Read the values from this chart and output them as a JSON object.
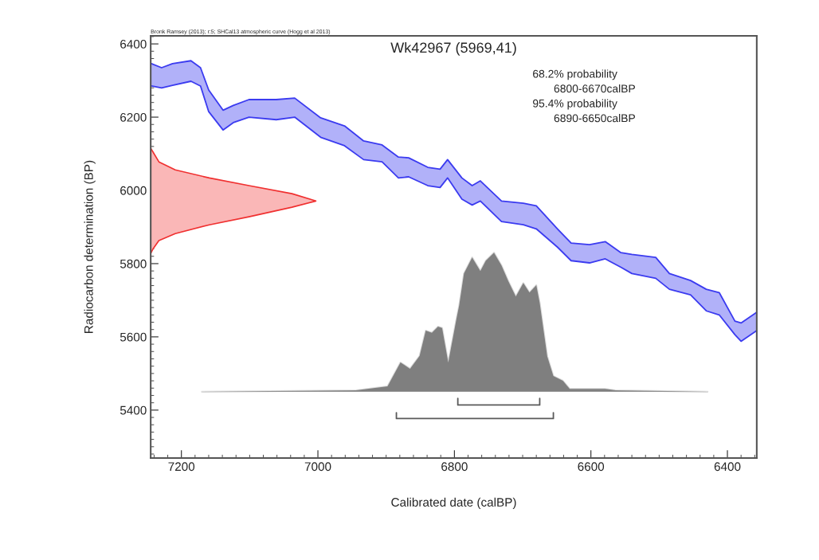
{
  "chart_data": {
    "type": "line",
    "title": "Wk42967 (5969,41)",
    "xlabel": "Calibrated date (calBP)",
    "ylabel": "Radiocarbon determination (BP)",
    "annotations": [
      "Bronk Ramsey (2013); r:5; SHCal13 atmospheric curve (Hogg et al 2013)",
      "68.2% probability",
      "6800-6670calBP",
      "95.4% probability",
      "6890-6650calBP"
    ],
    "xlim": [
      7245,
      6357
    ],
    "xticks": [
      7200,
      7000,
      6800,
      6600,
      6400
    ],
    "ylim": [
      5269,
      6422
    ],
    "yticks": [
      5400,
      5600,
      5800,
      6000,
      6200,
      6400
    ],
    "grid": false,
    "legend": false,
    "series": [
      {
        "type": "line",
        "color": "#3b3bf0",
        "x": [
          7244,
          7229,
          7213,
          7186,
          7172,
          7160,
          7139,
          7124,
          7101,
          7061,
          7034,
          6996,
          6961,
          6933,
          6906,
          6882,
          6867,
          6839,
          6821,
          6810,
          6789,
          6774,
          6762,
          6731,
          6699,
          6680,
          6649,
          6629,
          6602,
          6579,
          6556,
          6540,
          6505,
          6485,
          6454,
          6431,
          6412,
          6389,
          6380,
          6357
        ],
        "values": [
          6346,
          6335,
          6346,
          6354,
          6335,
          6274,
          6219,
          6232,
          6248,
          6248,
          6252,
          6198,
          6176,
          6135,
          6124,
          6091,
          6089,
          6063,
          6058,
          6084,
          6034,
          6013,
          6026,
          5971,
          5965,
          5958,
          5895,
          5856,
          5852,
          5860,
          5830,
          5825,
          5817,
          5773,
          5754,
          5730,
          5721,
          5643,
          5638,
          5667
        ]
      },
      {
        "type": "line",
        "color": "#3b3bf0",
        "x": [
          7244,
          7229,
          7213,
          7186,
          7172,
          7160,
          7139,
          7124,
          7101,
          7061,
          7034,
          6996,
          6961,
          6933,
          6906,
          6882,
          6867,
          6839,
          6821,
          6810,
          6789,
          6774,
          6762,
          6731,
          6699,
          6680,
          6649,
          6629,
          6602,
          6579,
          6556,
          6540,
          6505,
          6485,
          6454,
          6431,
          6412,
          6389,
          6380,
          6357
        ],
        "values": [
          6285,
          6280,
          6287,
          6298,
          6285,
          6215,
          6165,
          6185,
          6200,
          6193,
          6200,
          6145,
          6122,
          6084,
          6078,
          6034,
          6037,
          6013,
          6008,
          6034,
          5976,
          5960,
          5971,
          5915,
          5906,
          5895,
          5845,
          5808,
          5802,
          5813,
          5790,
          5773,
          5760,
          5730,
          5715,
          5671,
          5660,
          5606,
          5588,
          5617
        ],
        "lower": [
          6285,
          6280,
          6287,
          6298,
          6285,
          6215,
          6165,
          6185,
          6200,
          6193,
          6200,
          6145,
          6122,
          6084,
          6078,
          6034,
          6037,
          6013,
          6008,
          6034,
          5976,
          5960,
          5971,
          5915,
          5906,
          5895,
          5845,
          5808,
          5802,
          5813,
          5790,
          5773,
          5760,
          5730,
          5715,
          5671,
          5660,
          5606,
          5588,
          5617
        ],
        "upper": [
          6346,
          6335,
          6346,
          6354,
          6335,
          6274,
          6219,
          6232,
          6248,
          6248,
          6252,
          6198,
          6176,
          6135,
          6124,
          6091,
          6089,
          6063,
          6058,
          6084,
          6034,
          6013,
          6026,
          5971,
          5965,
          5958,
          5895,
          5856,
          5852,
          5860,
          5830,
          5825,
          5817,
          5773,
          5754,
          5730,
          5721,
          5643,
          5638,
          5667
        ]
      },
      {
        "type": "area",
        "color": "#f03030",
        "x": [
          7245,
          7242,
          7233,
          7209,
          7159,
          7101,
          7038,
          7003,
          7038,
          7101,
          7159,
          7209,
          7233,
          7242,
          7245
        ],
        "values": [
          6115,
          6106,
          6078,
          6056,
          6034,
          6013,
          5991,
          5971,
          5954,
          5928,
          5906,
          5882,
          5863,
          5839,
          5828
        ]
      },
      {
        "type": "area",
        "color": "#7f7f7f",
        "x": [
          7170,
          6944,
          6898,
          6879,
          6865,
          6851,
          6842,
          6833,
          6824,
          6818,
          6809,
          6797,
          6793,
          6786,
          6774,
          6762,
          6754,
          6742,
          6731,
          6721,
          6710,
          6699,
          6690,
          6680,
          6675,
          6664,
          6655,
          6641,
          6631,
          6579,
          6564,
          6429
        ],
        "values": [
          5450,
          5454,
          5465,
          5530,
          5513,
          5548,
          5617,
          5611,
          5628,
          5624,
          5530,
          5649,
          5686,
          5773,
          5817,
          5780,
          5808,
          5830,
          5795,
          5752,
          5710,
          5747,
          5721,
          5741,
          5693,
          5547,
          5493,
          5480,
          5458,
          5458,
          5454,
          5450
        ]
      },
      {
        "color": "#5a5a5a",
        "x": [
          6795,
          6795,
          6675,
          6675
        ],
        "values": [
          5432,
          5414,
          5414,
          5432
        ]
      },
      {
        "color": "#5a5a5a",
        "x": [
          6885,
          6885,
          6655,
          6655
        ],
        "values": [
          5393,
          5377,
          5377,
          5393
        ]
      }
    ]
  }
}
